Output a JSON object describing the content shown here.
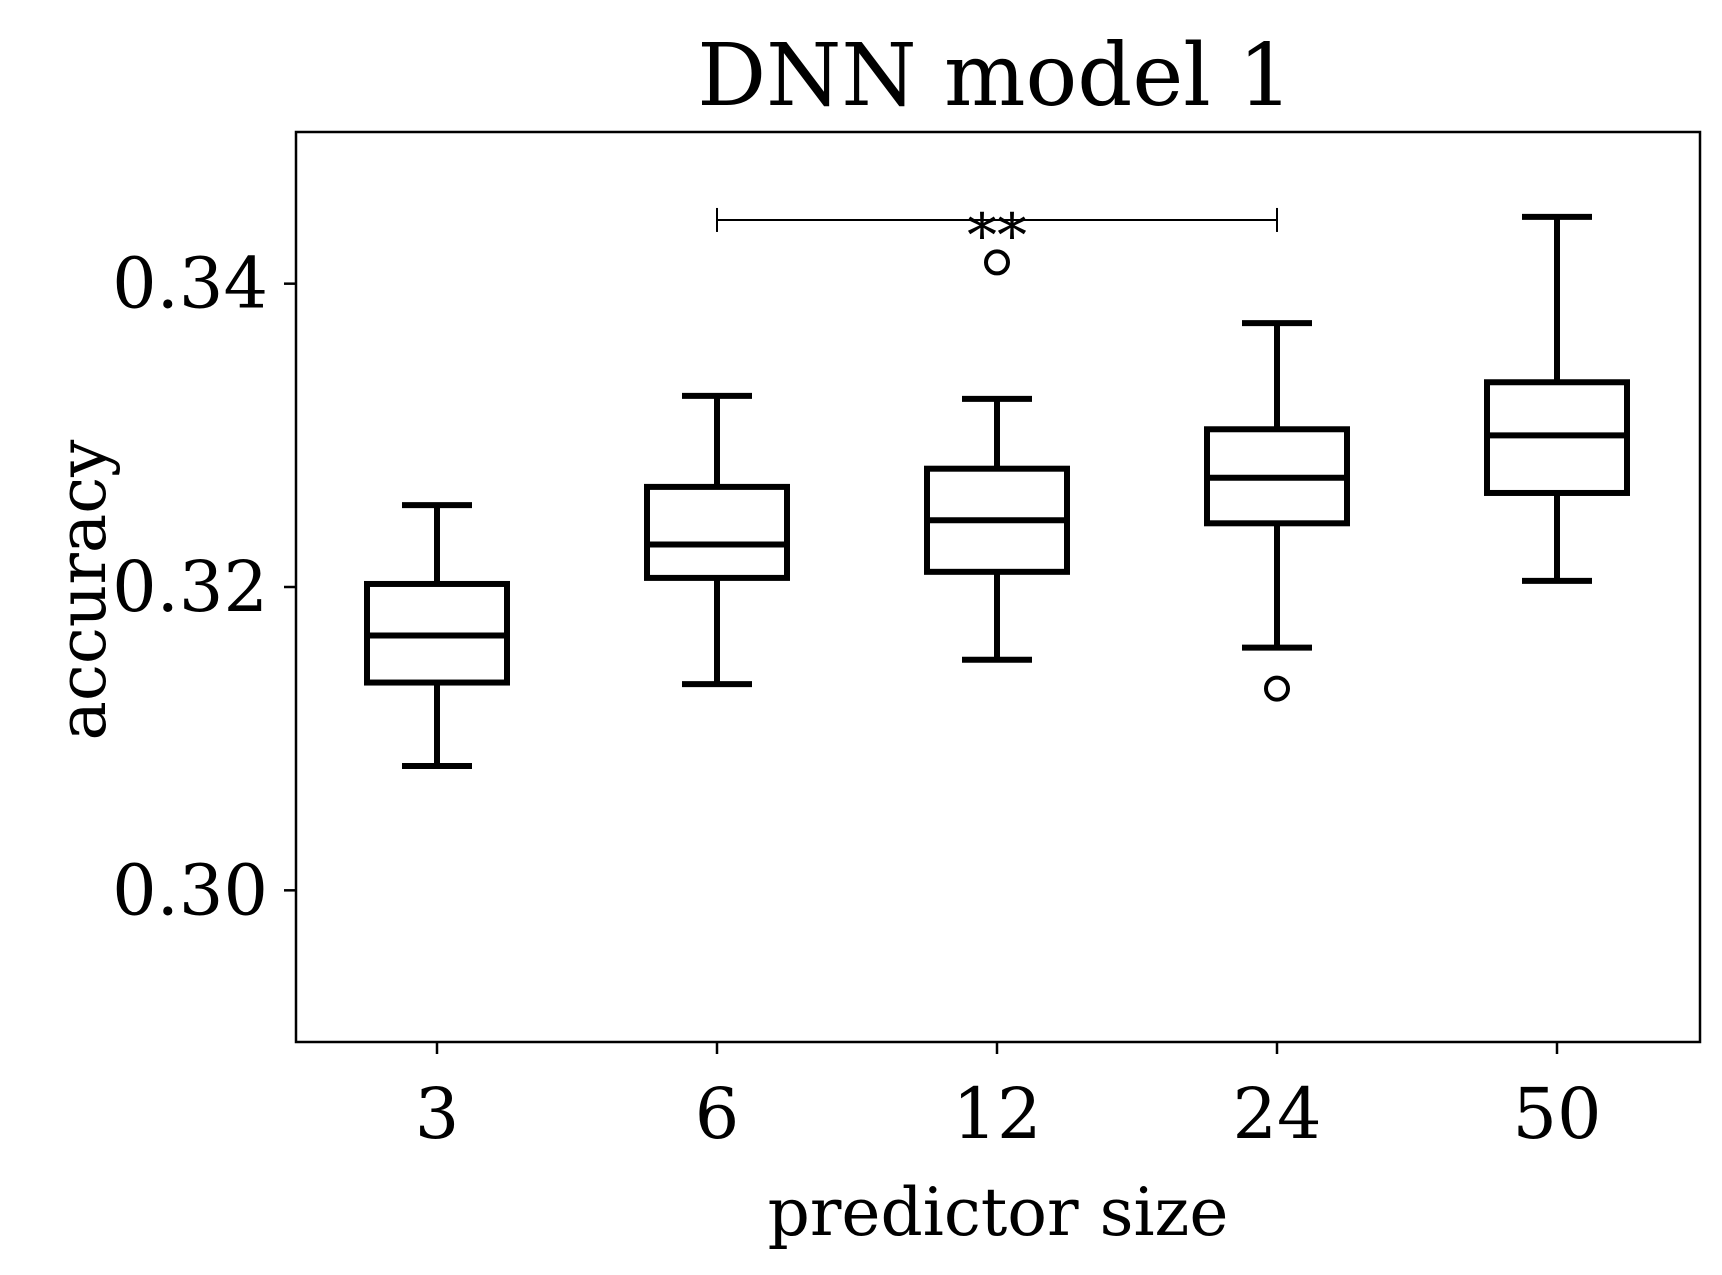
{
  "chart_data": {
    "type": "box",
    "title": "DNN model 1",
    "xlabel": "predictor size",
    "ylabel": "accuracy",
    "ylim": [
      0.29,
      0.35
    ],
    "yticks": [
      0.3,
      0.32,
      0.34
    ],
    "ytick_labels": [
      "0.30",
      "0.32",
      "0.34"
    ],
    "grid": false,
    "categories": [
      "3",
      "6",
      "12",
      "24",
      "50"
    ],
    "boxes": [
      {
        "category": "3",
        "whisker_low": 0.3082,
        "q1": 0.3137,
        "median": 0.3168,
        "q3": 0.3202,
        "whisker_high": 0.3254,
        "outliers": []
      },
      {
        "category": "6",
        "whisker_low": 0.3136,
        "q1": 0.3206,
        "median": 0.3228,
        "q3": 0.3266,
        "whisker_high": 0.3326,
        "outliers": []
      },
      {
        "category": "12",
        "whisker_low": 0.3152,
        "q1": 0.321,
        "median": 0.3244,
        "q3": 0.3278,
        "whisker_high": 0.3324,
        "outliers": [
          0.3414
        ]
      },
      {
        "category": "24",
        "whisker_low": 0.316,
        "q1": 0.3242,
        "median": 0.3272,
        "q3": 0.3304,
        "whisker_high": 0.3374,
        "outliers": [
          0.3133
        ]
      },
      {
        "category": "50",
        "whisker_low": 0.3204,
        "q1": 0.3262,
        "median": 0.33,
        "q3": 0.3335,
        "whisker_high": 0.3444,
        "outliers": []
      }
    ],
    "significance": [
      {
        "from": "6",
        "to": "24",
        "y": 0.3442,
        "label": "**"
      }
    ]
  }
}
